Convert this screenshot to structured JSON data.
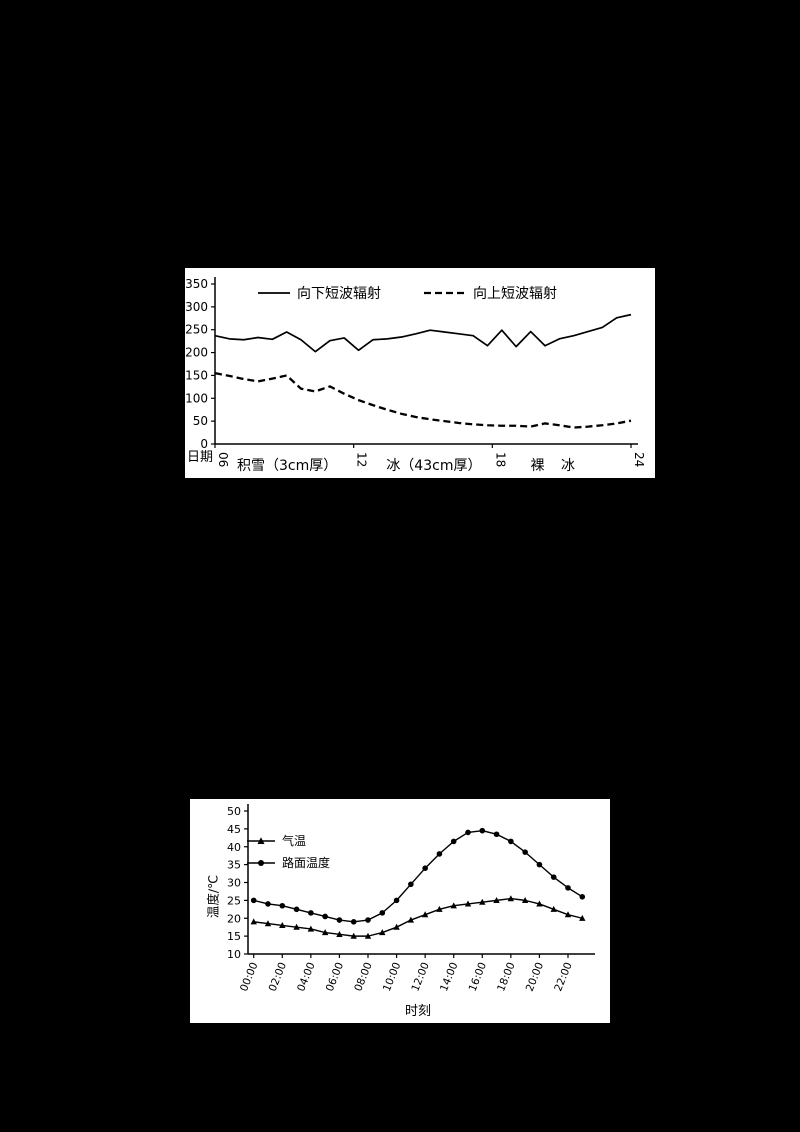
{
  "page": {
    "background_color": "#000000",
    "panel_color": "#ffffff",
    "line_color": "#000000"
  },
  "chart_data": [
    {
      "type": "line",
      "title": "",
      "xlabel": "日期",
      "ylabel": "",
      "ylim": [
        0,
        350
      ],
      "yticks": [
        0,
        50,
        100,
        150,
        200,
        250,
        300,
        350
      ],
      "xlim": [
        6,
        24
      ],
      "xticks": [
        {
          "v": 6,
          "label": "06"
        },
        {
          "v": 12,
          "label": "12"
        },
        {
          "v": 18,
          "label": "18"
        },
        {
          "v": 24,
          "label": "24"
        }
      ],
      "grid": false,
      "legend_position": "top-inside",
      "x": [
        6.0,
        6.62,
        7.24,
        7.86,
        8.48,
        9.1,
        9.72,
        10.34,
        10.97,
        11.59,
        12.21,
        12.83,
        13.45,
        14.07,
        14.69,
        15.31,
        15.93,
        16.55,
        17.17,
        17.79,
        18.41,
        19.03,
        19.66,
        20.28,
        20.9,
        21.52,
        22.14,
        22.76,
        23.38,
        24.0
      ],
      "series": [
        {
          "name": "向下短波辐射",
          "style": "solid",
          "marker": null,
          "values": [
            237,
            230,
            228,
            233,
            229,
            245,
            228,
            202,
            226,
            232,
            205,
            228,
            230,
            234,
            241,
            249,
            245,
            241,
            237,
            215,
            249,
            213,
            246,
            215,
            230,
            237,
            246,
            255,
            276,
            283
          ]
        },
        {
          "name": "向上短波辐射",
          "style": "dashed",
          "marker": null,
          "values": [
            155,
            149,
            142,
            137,
            143,
            150,
            121,
            115,
            126,
            110,
            96,
            85,
            75,
            66,
            59,
            54,
            50,
            46,
            43,
            41,
            40,
            40,
            38,
            45,
            41,
            36,
            38,
            41,
            45,
            51
          ]
        }
      ],
      "annotations": [
        "积雪（3cm厚）",
        "冰（43cm厚）",
        "裸 冰"
      ]
    },
    {
      "type": "line",
      "title": "",
      "xlabel": "时刻",
      "ylabel": "温度/℃",
      "ylim": [
        10,
        50
      ],
      "yticks": [
        10,
        15,
        20,
        25,
        30,
        35,
        40,
        45,
        50
      ],
      "xlim": [
        -0.4,
        23.4
      ],
      "xticks": [
        {
          "v": 0,
          "label": "00:00"
        },
        {
          "v": 2,
          "label": "02:00"
        },
        {
          "v": 4,
          "label": "04:00"
        },
        {
          "v": 6,
          "label": "06:00"
        },
        {
          "v": 8,
          "label": "08:00"
        },
        {
          "v": 10,
          "label": "10:00"
        },
        {
          "v": 12,
          "label": "12:00"
        },
        {
          "v": 14,
          "label": "14:00"
        },
        {
          "v": 16,
          "label": "16:00"
        },
        {
          "v": 18,
          "label": "18:00"
        },
        {
          "v": 20,
          "label": "20:00"
        },
        {
          "v": 22,
          "label": "22:00"
        }
      ],
      "grid": false,
      "legend_position": "upper-left-inside",
      "x": [
        0,
        1,
        2,
        3,
        4,
        5,
        6,
        7,
        8,
        9,
        10,
        11,
        12,
        13,
        14,
        15,
        16,
        17,
        18,
        19,
        20,
        21,
        22,
        23
      ],
      "series": [
        {
          "name": "气温",
          "style": "solid",
          "marker": "triangle",
          "values": [
            19,
            18.5,
            18,
            17.5,
            17,
            16,
            15.5,
            15,
            15,
            16,
            17.5,
            19.5,
            21,
            22.5,
            23.5,
            24,
            24.5,
            25,
            25.5,
            25,
            24,
            22.5,
            21,
            20
          ]
        },
        {
          "name": "路面温度",
          "style": "solid",
          "marker": "circle",
          "values": [
            25,
            24,
            23.5,
            22.5,
            21.5,
            20.5,
            19.5,
            19,
            19.5,
            21.5,
            25,
            29.5,
            34,
            38,
            41.5,
            44,
            44.5,
            43.5,
            41.5,
            38.5,
            35,
            31.5,
            28.5,
            26
          ]
        }
      ]
    }
  ]
}
